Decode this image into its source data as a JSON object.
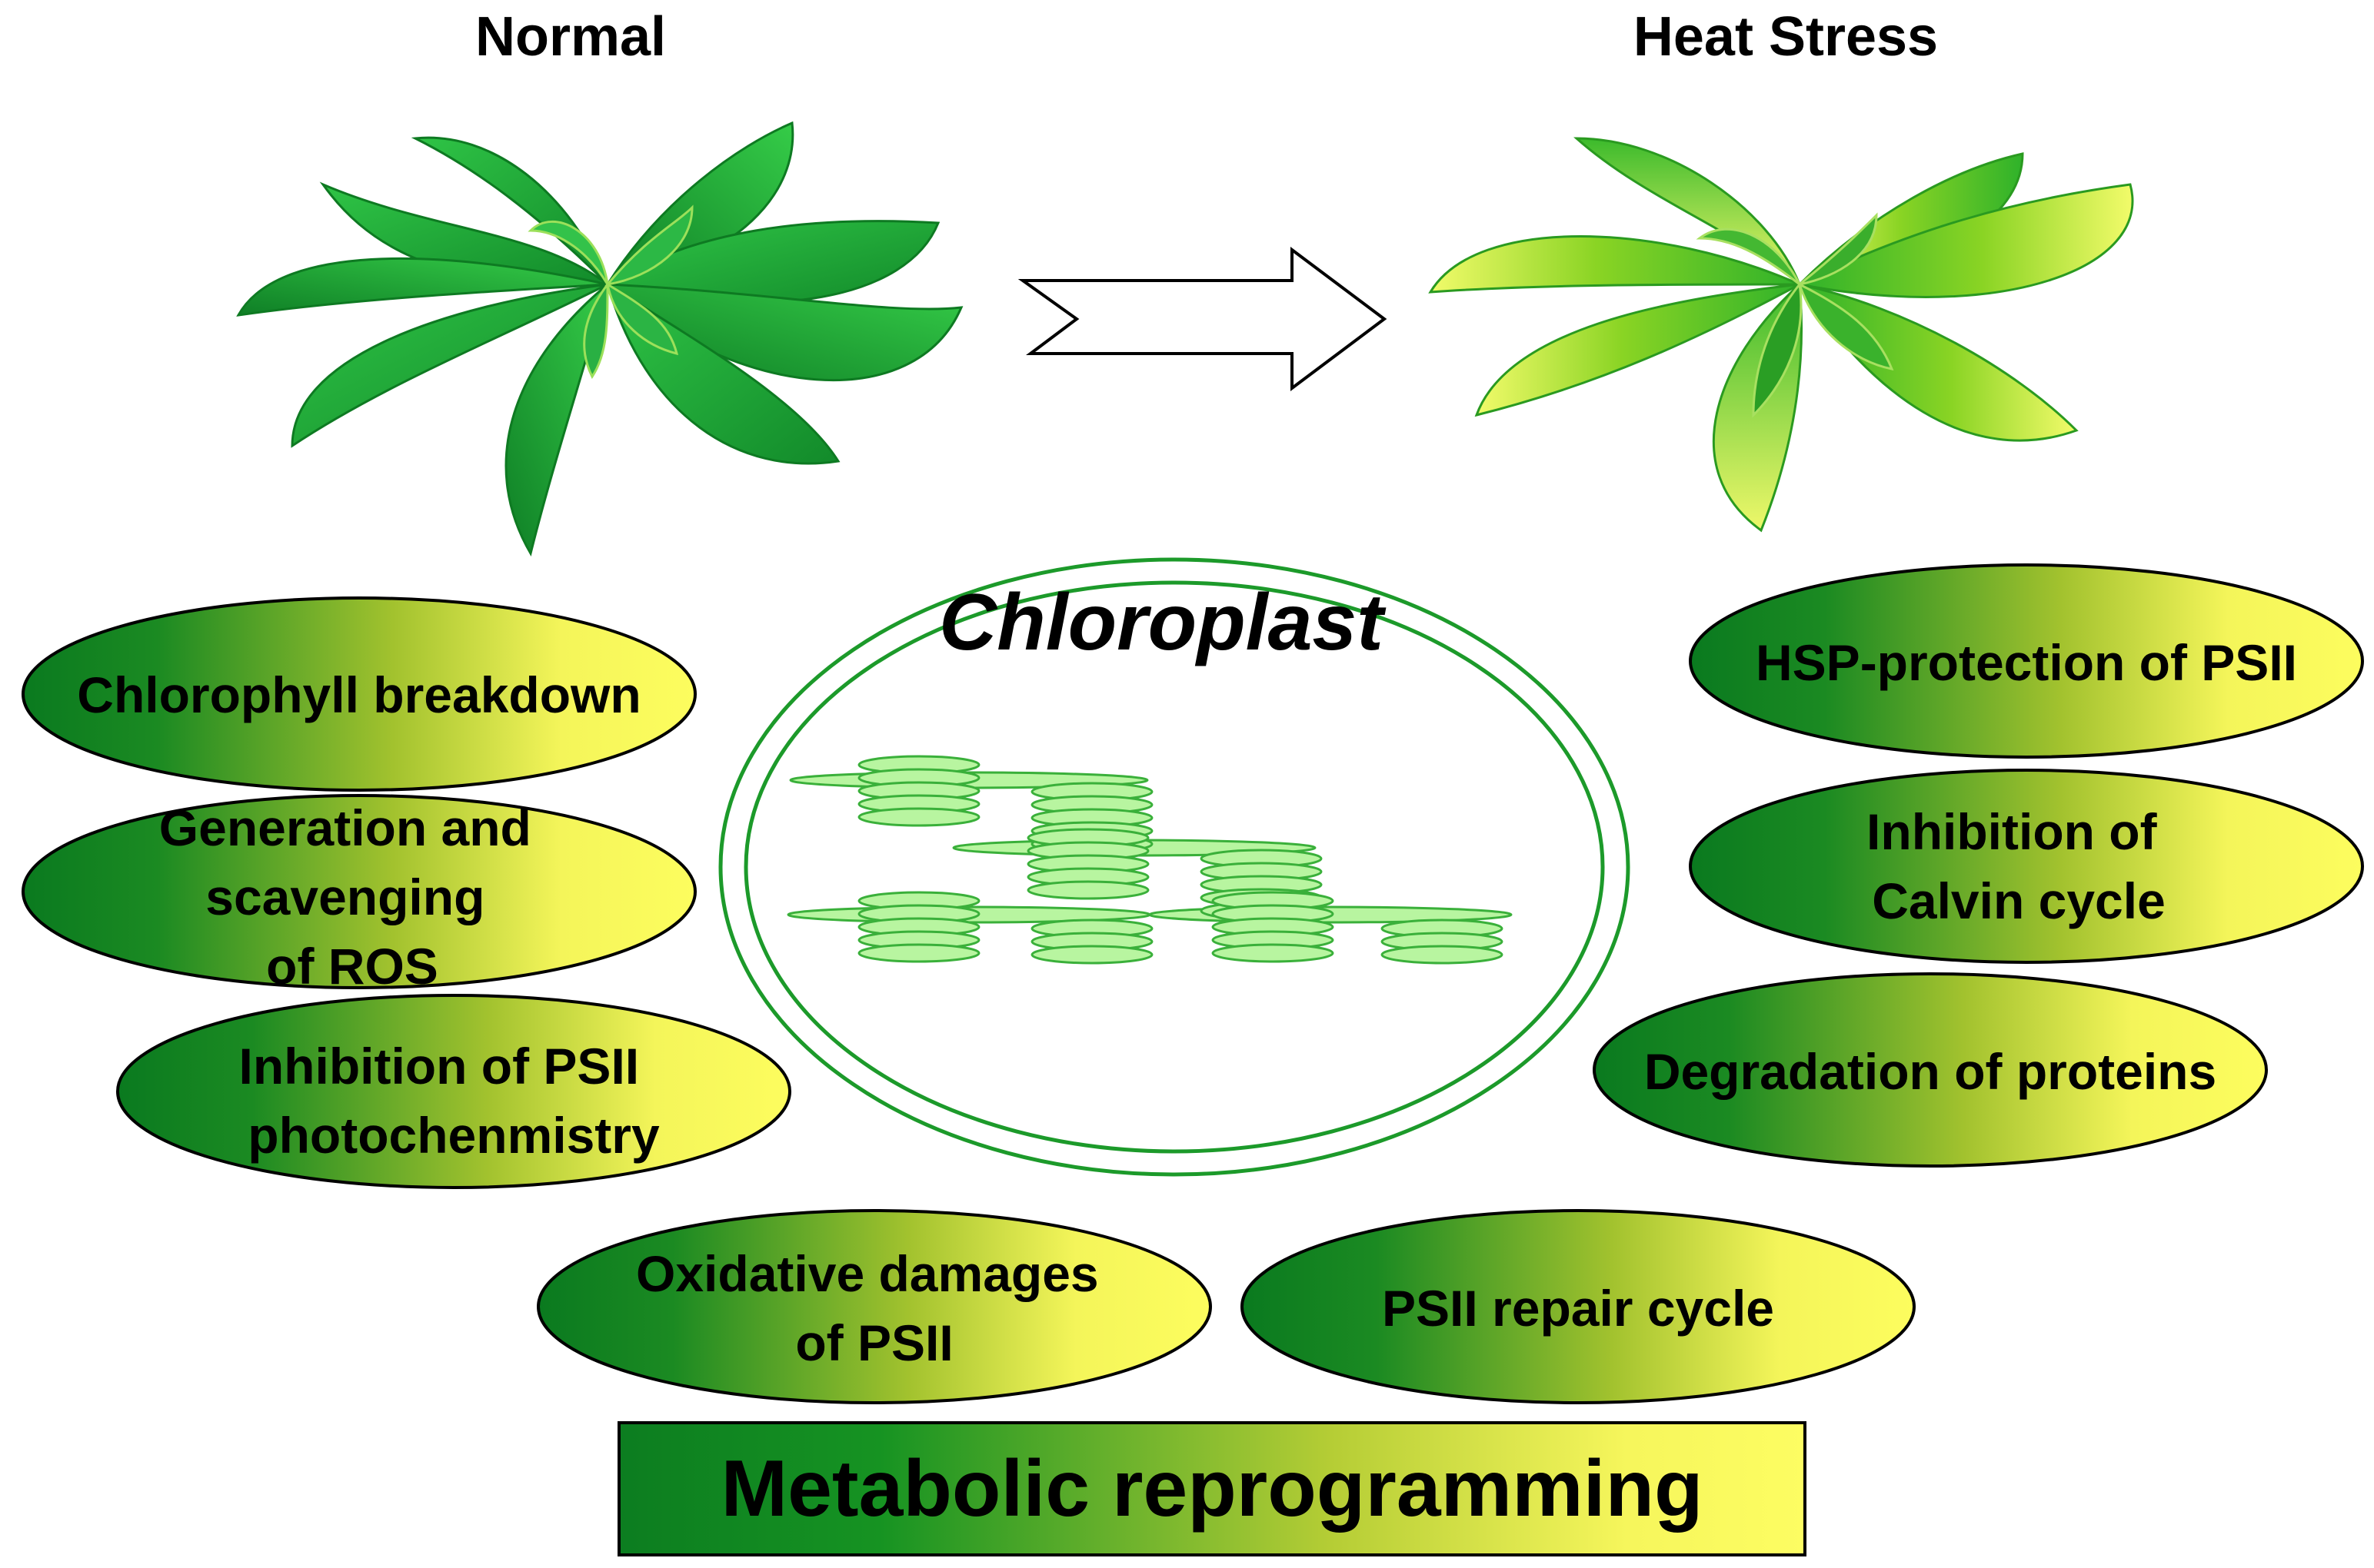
{
  "headings": {
    "normal": "Normal",
    "heat_stress": "Heat Stress"
  },
  "chloroplast": {
    "title": "Chloroplast"
  },
  "effects": {
    "left": [
      {
        "lines": [
          "Chlorophyll breakdown"
        ]
      },
      {
        "lines": [
          "Generation and",
          "scavenging",
          "of ROS"
        ]
      },
      {
        "lines": [
          "Inhibition of PSII",
          "photochenmistry"
        ]
      }
    ],
    "right": [
      {
        "lines": [
          "HSP-protection of PSII"
        ]
      },
      {
        "lines": [
          "Inhibition of",
          "Calvin cycle"
        ]
      },
      {
        "lines": [
          "Degradation of proteins"
        ]
      }
    ],
    "bottom": [
      {
        "lines": [
          "Oxidative damages",
          "of PSII"
        ]
      },
      {
        "lines": [
          "PSII repair cycle"
        ]
      }
    ]
  },
  "banner": {
    "label": "Metabolic reprogramming"
  },
  "colors": {
    "dark_green": "#0a7a1f",
    "mid_green": "#8fb82a",
    "light_yellow": "#fbfb5a",
    "chloroplast_outline": "#1c9a2a",
    "thylakoid_fill": "#b8f5a0",
    "thylakoid_stroke": "#3ab03a",
    "normal_leaf": "#1fa838",
    "heat_leaf_light": "#f2fb6a"
  },
  "icons": {
    "transition_arrow": "right-arrow-icon",
    "normal_plant": "healthy-plant-icon",
    "stressed_plant": "heat-stressed-plant-icon"
  }
}
